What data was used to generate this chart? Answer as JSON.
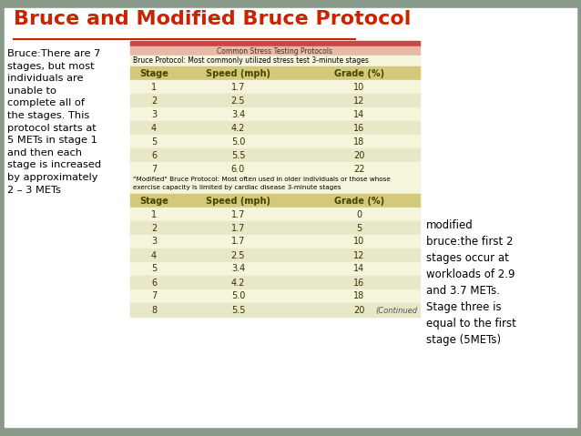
{
  "title": "Bruce and Modified Bruce Protocol",
  "bg_color": "#8a9a8a",
  "slide_bg": "#ffffff",
  "title_color": "#cc2200",
  "title_underline_color": "#cc2200",
  "left_text": "Bruce:There are 7\nstages, but most\nindividuals are\nunable to\ncomplete all of\nthe stages. This\nprotocol starts at\n5 METs in stage 1\nand then each\nstage is increased\nby approximately\n2 – 3 METs",
  "right_text": "modified\nbruce:the first 2\nstages occur at\nworkloads of 2.9\nand 3.7 METs.\nStage three is\nequal to the first\nstage (5METs)",
  "table_top_header": "Common Stress Testing Protocols",
  "bruce_subtitle": "Bruce Protocol: Most commonly utilized stress test 3-minute stages",
  "bruce_col_headers": [
    "Stage",
    "Speed (mph)",
    "Grade (%)"
  ],
  "bruce_rows": [
    [
      "1",
      "1.7",
      "10"
    ],
    [
      "2",
      "2.5",
      "12"
    ],
    [
      "3",
      "3.4",
      "14"
    ],
    [
      "4",
      "4.2",
      "16"
    ],
    [
      "5",
      "5.0",
      "18"
    ],
    [
      "6",
      "5.5",
      "20"
    ],
    [
      "7",
      "6.0",
      "22"
    ]
  ],
  "modified_subtitle_line1": "\"Modified\" Bruce Protocol: Most often used in older individuals or those whose",
  "modified_subtitle_line2": "exercise capacity is limited by cardiac disease 3-minute stages",
  "modified_col_headers": [
    "Stage",
    "Speed (mph)",
    "Grade (%)"
  ],
  "modified_rows": [
    [
      "1",
      "1.7",
      "0"
    ],
    [
      "2",
      "1.7",
      "5"
    ],
    [
      "3",
      "1.7",
      "10"
    ],
    [
      "4",
      "2.5",
      "12"
    ],
    [
      "5",
      "3.4",
      "14"
    ],
    [
      "6",
      "4.2",
      "16"
    ],
    [
      "7",
      "5.0",
      "18"
    ],
    [
      "8",
      "5.5",
      "20"
    ]
  ],
  "continued_text": "(Continued",
  "header_row_color": "#d4c87a",
  "odd_row_color": "#f5f5dc",
  "even_row_color": "#e8e8c8",
  "table_bg": "#f5f5dc",
  "top_bar_color": "#cc4444",
  "top_strip_color": "#e8b8a8"
}
